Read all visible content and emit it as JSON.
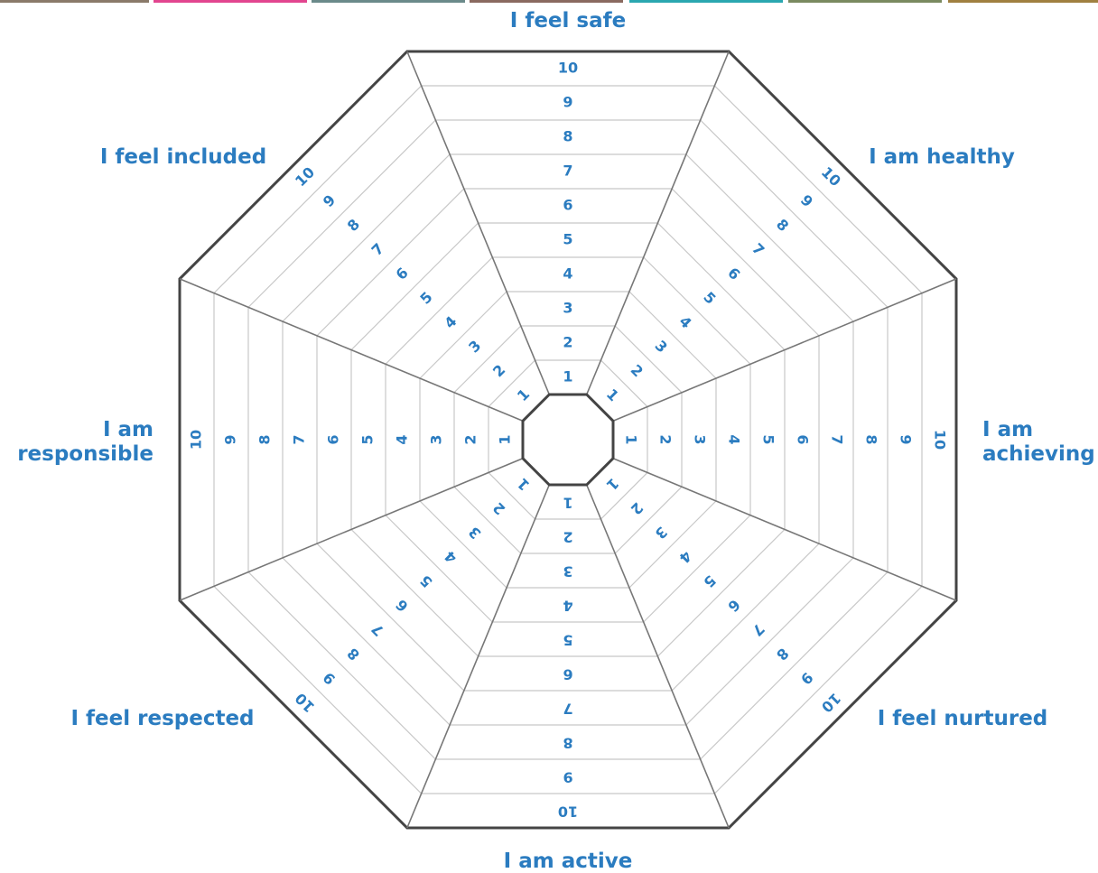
{
  "sectors": [
    {
      "lines": [
        "I feel safe"
      ]
    },
    {
      "lines": [
        "I am healthy"
      ]
    },
    {
      "lines": [
        "I am",
        "achieving"
      ]
    },
    {
      "lines": [
        "I feel nurtured"
      ]
    },
    {
      "lines": [
        "I am active"
      ]
    },
    {
      "lines": [
        "I feel respected"
      ]
    },
    {
      "lines": [
        "I am",
        "responsible"
      ]
    },
    {
      "lines": [
        "I feel included"
      ]
    }
  ],
  "scale": [
    1,
    2,
    3,
    4,
    5,
    6,
    7,
    8,
    9,
    10
  ]
}
